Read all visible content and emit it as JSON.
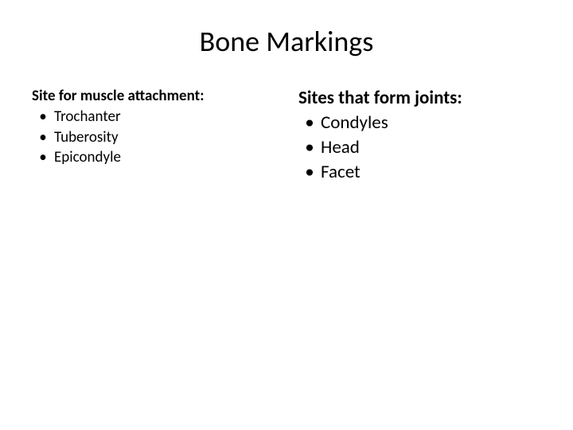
{
  "slide": {
    "title": "Bone Markings",
    "background_color": "#ffffff",
    "text_color": "#000000",
    "title_fontsize": 36,
    "left": {
      "header": "Site for muscle attachment:",
      "fontsize": 19,
      "items": [
        "Trochanter",
        "Tuberosity",
        "Epicondyle"
      ]
    },
    "right": {
      "header": "Sites that form joints:",
      "fontsize": 23,
      "items": [
        "Condyles",
        "Head",
        "Facet"
      ]
    },
    "bullet_char": "•"
  }
}
